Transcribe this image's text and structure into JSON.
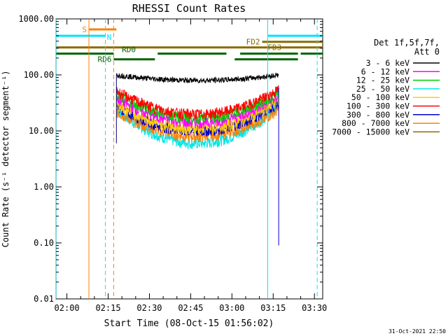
{
  "chart_data": {
    "type": "line",
    "title": "RHESSI Count Rates",
    "xlabel": "Start Time (08-Oct-15 01:56:02)",
    "ylabel": "Count Rate (s⁻¹ detector segment⁻¹)",
    "y_scale": "log",
    "ylim": [
      0.01,
      1000
    ],
    "xlim": [
      "01:56:02",
      "03:33:00"
    ],
    "x_ticks": [
      "02:00",
      "02:15",
      "02:30",
      "02:45",
      "03:00",
      "03:15",
      "03:30"
    ],
    "y_ticks": [
      "0.01",
      "0.10",
      "1.00",
      "10.00",
      "100.00",
      "1000.00"
    ],
    "grid": false,
    "legend_header": [
      "Det 1f,5f,7f,",
      "Att 0"
    ],
    "legend_placement": "right",
    "data_window": {
      "start": "02:18",
      "end": "03:17"
    },
    "series": [
      {
        "name": "3 - 6 keV",
        "color": "#000000",
        "start": 100,
        "mid": 80,
        "end": 100
      },
      {
        "name": "6 - 12 keV",
        "color": "#ff00ff",
        "start": 38,
        "mid": 14,
        "end": 42
      },
      {
        "name": "12 - 25 keV",
        "color": "#00cc00",
        "start": 45,
        "mid": 17,
        "end": 48
      },
      {
        "name": "25 - 50 keV",
        "color": "#00e5e5",
        "start": 24,
        "mid": 6,
        "end": 28
      },
      {
        "name": "50 - 100 keV",
        "color": "#ffcc00",
        "start": 30,
        "mid": 11,
        "end": 36
      },
      {
        "name": "100 - 300 keV",
        "color": "#ff0000",
        "start": 52,
        "mid": 20,
        "end": 55
      },
      {
        "name": "300 - 800 keV",
        "color": "#0000cc",
        "start": 28,
        "mid": 10,
        "end": 32
      },
      {
        "name": "800 - 7000 keV",
        "color": "#ff8000",
        "start": 22,
        "mid": 8,
        "end": 24
      },
      {
        "name": "7000 - 15000 keV",
        "color": "#8b6a00",
        "start": 0,
        "mid": 0,
        "end": 0
      }
    ],
    "flag_bars": [
      {
        "label": "S",
        "color": "#ff8000",
        "start": "02:08",
        "end": "02:18",
        "level": 650,
        "label_pos": "left"
      },
      {
        "label": "N",
        "color": "#00e5ff",
        "start": "01:56",
        "end": "02:14",
        "level": 500,
        "label_pos": "right"
      },
      {
        "label": "",
        "color": "#00e5ff",
        "start": "03:13",
        "end": "03:33",
        "level": 500
      },
      {
        "label": "FD2",
        "color": "#8b6a00",
        "start": "03:11",
        "end": "03:33",
        "level": 390,
        "label_pos": "left"
      },
      {
        "label": "FD3",
        "color": "#8b6a00",
        "start": "01:56",
        "end": "03:33",
        "level": 310,
        "label_pos": "below-right"
      },
      {
        "label": "",
        "color": "#006400",
        "start": "01:56",
        "end": "02:17",
        "level": 240
      },
      {
        "label": "RD0",
        "color": "#006400",
        "start": "02:33",
        "end": "02:58",
        "level": 240
      },
      {
        "label": "",
        "color": "#006400",
        "start": "03:03",
        "end": "03:24",
        "level": 240
      },
      {
        "label": "",
        "color": "#006400",
        "start": "03:25",
        "end": "03:33",
        "level": 240
      },
      {
        "label": "RD6",
        "color": "#006400",
        "start": "02:17",
        "end": "02:32",
        "level": 190,
        "label_pos": "left"
      },
      {
        "label": "",
        "color": "#006400",
        "start": "03:01",
        "end": "03:24",
        "level": 190
      }
    ],
    "vertical_lines": [
      {
        "time": "02:08",
        "color": "#ff8000",
        "style": "solid"
      },
      {
        "time": "02:14",
        "color": "#00e5ff",
        "style": "dashed"
      },
      {
        "time": "02:17",
        "color": "#ff8000",
        "style": "dashed"
      },
      {
        "time": "03:13",
        "color": "#00e5ff",
        "style": "solid"
      },
      {
        "time": "03:31",
        "color": "#00e5ff",
        "style": "dashed"
      },
      {
        "time": "01:56",
        "color": "#00e5ff",
        "style": "solid"
      }
    ]
  },
  "footer": {
    "timestamp": "31-Oct-2021 22:50"
  }
}
